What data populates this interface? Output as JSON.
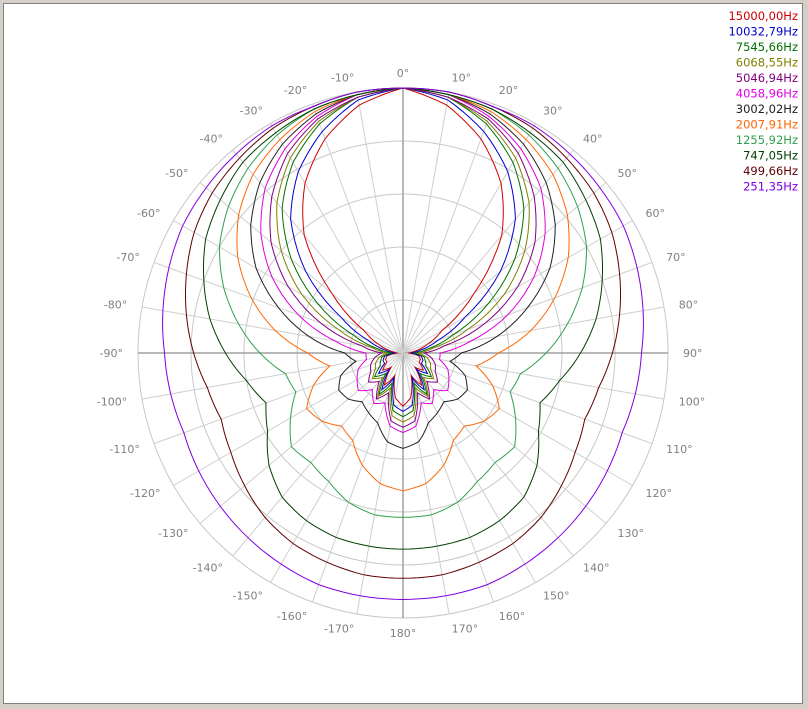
{
  "chart_data": {
    "type": "polar",
    "title": "",
    "radial_range": [
      0,
      1
    ],
    "radial_rings": 5,
    "spoke_step_deg": 10,
    "grid": true,
    "legend_position": "top-right",
    "angle_labels": [
      {
        "deg": 0,
        "text": "0°"
      },
      {
        "deg": 10,
        "text": "10°"
      },
      {
        "deg": 20,
        "text": "20°"
      },
      {
        "deg": 30,
        "text": "30°"
      },
      {
        "deg": 40,
        "text": "40°"
      },
      {
        "deg": 50,
        "text": "50°"
      },
      {
        "deg": 60,
        "text": "60°"
      },
      {
        "deg": 70,
        "text": "70°"
      },
      {
        "deg": 80,
        "text": "80°"
      },
      {
        "deg": 90,
        "text": "90°"
      },
      {
        "deg": 100,
        "text": "100°"
      },
      {
        "deg": 110,
        "text": "110°"
      },
      {
        "deg": 120,
        "text": "120°"
      },
      {
        "deg": 130,
        "text": "130°"
      },
      {
        "deg": 140,
        "text": "140°"
      },
      {
        "deg": 150,
        "text": "150°"
      },
      {
        "deg": 160,
        "text": "160°"
      },
      {
        "deg": 170,
        "text": "170°"
      },
      {
        "deg": 180,
        "text": "180°"
      },
      {
        "deg": -10,
        "text": "-10°"
      },
      {
        "deg": -20,
        "text": "-20°"
      },
      {
        "deg": -30,
        "text": "-30°"
      },
      {
        "deg": -40,
        "text": "-40°"
      },
      {
        "deg": -50,
        "text": "-50°"
      },
      {
        "deg": -60,
        "text": "-60°"
      },
      {
        "deg": -70,
        "text": "-70°"
      },
      {
        "deg": -80,
        "text": "-80°"
      },
      {
        "deg": -90,
        "text": "-90°"
      },
      {
        "deg": -100,
        "text": "-100°"
      },
      {
        "deg": -110,
        "text": "-110°"
      },
      {
        "deg": -120,
        "text": "-120°"
      },
      {
        "deg": -130,
        "text": "-130°"
      },
      {
        "deg": -140,
        "text": "-140°"
      },
      {
        "deg": -150,
        "text": "-150°"
      },
      {
        "deg": -160,
        "text": "-160°"
      },
      {
        "deg": -170,
        "text": "-170°"
      }
    ],
    "series": [
      {
        "name": "15000,00Hz",
        "color": "#d00000",
        "angles": [
          0,
          10,
          20,
          30,
          40,
          50,
          60,
          70,
          80,
          90,
          100,
          110,
          120,
          130,
          140,
          150,
          160,
          170,
          180
        ],
        "values": [
          1.0,
          0.95,
          0.86,
          0.74,
          0.58,
          0.35,
          0.17,
          0.1,
          0.05,
          0.02,
          0.06,
          0.07,
          0.07,
          0.1,
          0.07,
          0.14,
          0.09,
          0.17,
          0.2
        ]
      },
      {
        "name": "10032,79Hz",
        "color": "#0000cc",
        "angles": [
          0,
          10,
          20,
          30,
          40,
          50,
          60,
          70,
          80,
          90,
          100,
          110,
          120,
          130,
          140,
          150,
          160,
          170,
          180
        ],
        "values": [
          1.0,
          0.97,
          0.89,
          0.79,
          0.66,
          0.48,
          0.27,
          0.14,
          0.07,
          0.03,
          0.07,
          0.08,
          0.08,
          0.12,
          0.08,
          0.16,
          0.1,
          0.2,
          0.22
        ]
      },
      {
        "name": "7545,66Hz",
        "color": "#007000",
        "angles": [
          0,
          10,
          20,
          30,
          40,
          50,
          60,
          70,
          80,
          90,
          100,
          110,
          120,
          130,
          140,
          150,
          160,
          170,
          180
        ],
        "values": [
          1.0,
          0.98,
          0.92,
          0.83,
          0.71,
          0.55,
          0.37,
          0.2,
          0.1,
          0.04,
          0.08,
          0.09,
          0.1,
          0.14,
          0.1,
          0.18,
          0.12,
          0.22,
          0.24
        ]
      },
      {
        "name": "6068,55Hz",
        "color": "#808000",
        "angles": [
          0,
          10,
          20,
          30,
          40,
          50,
          60,
          70,
          80,
          90,
          100,
          110,
          120,
          130,
          140,
          150,
          160,
          170,
          180
        ],
        "values": [
          1.0,
          0.98,
          0.93,
          0.85,
          0.74,
          0.6,
          0.44,
          0.26,
          0.12,
          0.06,
          0.09,
          0.11,
          0.12,
          0.15,
          0.12,
          0.19,
          0.14,
          0.24,
          0.26
        ]
      },
      {
        "name": "5046,94Hz",
        "color": "#800080",
        "angles": [
          0,
          10,
          20,
          30,
          40,
          50,
          60,
          70,
          80,
          90,
          100,
          110,
          120,
          130,
          140,
          150,
          160,
          170,
          180
        ],
        "values": [
          1.0,
          0.98,
          0.94,
          0.87,
          0.77,
          0.65,
          0.5,
          0.33,
          0.16,
          0.08,
          0.11,
          0.13,
          0.14,
          0.17,
          0.14,
          0.2,
          0.16,
          0.26,
          0.28
        ]
      },
      {
        "name": "4058,96Hz",
        "color": "#e000e0",
        "angles": [
          0,
          10,
          20,
          30,
          40,
          50,
          60,
          70,
          80,
          90,
          100,
          110,
          120,
          130,
          140,
          150,
          160,
          170,
          180
        ],
        "values": [
          1.0,
          0.99,
          0.95,
          0.89,
          0.81,
          0.7,
          0.57,
          0.42,
          0.26,
          0.14,
          0.14,
          0.18,
          0.2,
          0.22,
          0.18,
          0.22,
          0.2,
          0.28,
          0.3
        ]
      },
      {
        "name": "3002,02Hz",
        "color": "#202020",
        "angles": [
          0,
          10,
          20,
          30,
          40,
          50,
          60,
          70,
          80,
          90,
          100,
          110,
          120,
          130,
          140,
          150,
          160,
          170,
          180
        ],
        "values": [
          1.0,
          0.99,
          0.96,
          0.91,
          0.84,
          0.75,
          0.64,
          0.5,
          0.36,
          0.22,
          0.18,
          0.25,
          0.28,
          0.27,
          0.24,
          0.26,
          0.28,
          0.34,
          0.36
        ]
      },
      {
        "name": "2007,91Hz",
        "color": "#ff6600",
        "angles": [
          0,
          10,
          20,
          30,
          40,
          50,
          60,
          70,
          80,
          90,
          100,
          110,
          120,
          130,
          140,
          150,
          160,
          170,
          180
        ],
        "values": [
          1.0,
          0.99,
          0.97,
          0.93,
          0.88,
          0.81,
          0.72,
          0.61,
          0.49,
          0.36,
          0.28,
          0.36,
          0.42,
          0.4,
          0.36,
          0.38,
          0.45,
          0.5,
          0.52
        ]
      },
      {
        "name": "1255,92Hz",
        "color": "#30a050",
        "angles": [
          0,
          10,
          20,
          30,
          40,
          50,
          60,
          70,
          80,
          90,
          100,
          110,
          120,
          130,
          140,
          150,
          160,
          170,
          180
        ],
        "values": [
          1.0,
          0.99,
          0.98,
          0.95,
          0.91,
          0.86,
          0.8,
          0.72,
          0.63,
          0.54,
          0.45,
          0.43,
          0.49,
          0.55,
          0.54,
          0.56,
          0.6,
          0.62,
          0.62
        ]
      },
      {
        "name": "747,05Hz",
        "color": "#004000",
        "angles": [
          0,
          10,
          20,
          30,
          40,
          50,
          60,
          70,
          80,
          90,
          100,
          110,
          120,
          130,
          140,
          150,
          160,
          170,
          180
        ],
        "values": [
          1.0,
          0.99,
          0.98,
          0.96,
          0.94,
          0.9,
          0.86,
          0.8,
          0.74,
          0.67,
          0.6,
          0.55,
          0.59,
          0.66,
          0.71,
          0.73,
          0.74,
          0.74,
          0.74
        ]
      },
      {
        "name": "499,66Hz",
        "color": "#600000",
        "angles": [
          0,
          10,
          20,
          30,
          40,
          50,
          60,
          70,
          80,
          90,
          100,
          110,
          120,
          130,
          140,
          150,
          160,
          170,
          180
        ],
        "values": [
          1.0,
          1.0,
          0.99,
          0.98,
          0.96,
          0.94,
          0.91,
          0.87,
          0.83,
          0.79,
          0.75,
          0.73,
          0.75,
          0.78,
          0.81,
          0.83,
          0.84,
          0.85,
          0.85
        ]
      },
      {
        "name": "251,35Hz",
        "color": "#8000e0",
        "angles": [
          0,
          10,
          20,
          30,
          40,
          50,
          60,
          70,
          80,
          90,
          100,
          110,
          120,
          130,
          140,
          150,
          160,
          170,
          180
        ],
        "values": [
          1.0,
          1.0,
          0.99,
          0.99,
          0.98,
          0.97,
          0.96,
          0.94,
          0.92,
          0.9,
          0.89,
          0.88,
          0.89,
          0.9,
          0.91,
          0.92,
          0.93,
          0.93,
          0.93
        ]
      }
    ]
  }
}
